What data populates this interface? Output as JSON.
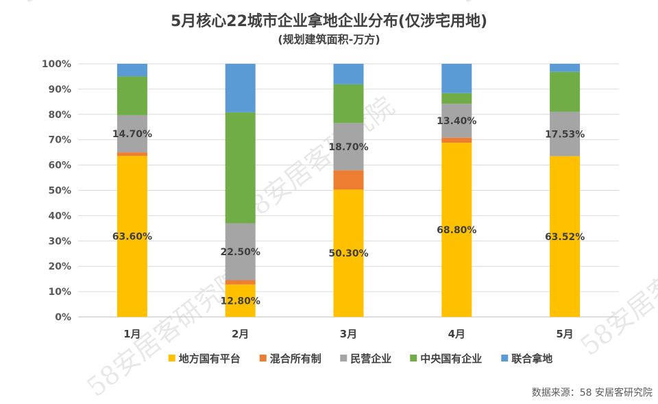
{
  "chart_data": {
    "type": "bar",
    "stacked": true,
    "percent": true,
    "title": "5月核心22城市企业拿地企业分布(仅涉宅用地)",
    "subtitle": "(规划建筑面积-万方)",
    "categories": [
      "1月",
      "2月",
      "3月",
      "4月",
      "5月"
    ],
    "ylim": [
      0,
      100
    ],
    "yticks": [
      "0%",
      "10%",
      "20%",
      "30%",
      "40%",
      "50%",
      "60%",
      "70%",
      "80%",
      "90%",
      "100%"
    ],
    "grid": true,
    "legend_position": "bottom",
    "series": [
      {
        "name": "地方国有平台",
        "color": "#FFC000",
        "values": [
          63.6,
          12.8,
          50.3,
          68.8,
          63.52
        ],
        "labels": [
          "63.60%",
          "12.80%",
          "50.30%",
          "68.80%",
          "63.52%"
        ]
      },
      {
        "name": "混合所有制",
        "color": "#ED7D31",
        "values": [
          1.4,
          1.7,
          7.6,
          2.0,
          0.0
        ],
        "labels": [
          "",
          "",
          "",
          "",
          ""
        ]
      },
      {
        "name": "民营企业",
        "color": "#A5A5A5",
        "values": [
          14.7,
          22.5,
          18.7,
          13.4,
          17.53
        ],
        "labels": [
          "14.70%",
          "22.50%",
          "18.70%",
          "13.40%",
          "17.53%"
        ]
      },
      {
        "name": "中央国有企业",
        "color": "#70AD47",
        "values": [
          15.3,
          43.8,
          15.3,
          4.2,
          15.75
        ],
        "labels": [
          "",
          "",
          "",
          "",
          ""
        ]
      },
      {
        "name": "联合拿地",
        "color": "#5B9BD5",
        "values": [
          5.0,
          19.2,
          8.1,
          11.6,
          3.2
        ],
        "labels": [
          "",
          "",
          "",
          "",
          ""
        ]
      }
    ]
  },
  "source": "数据来源：58 安居客研究院",
  "watermark": "58安居客研究院"
}
